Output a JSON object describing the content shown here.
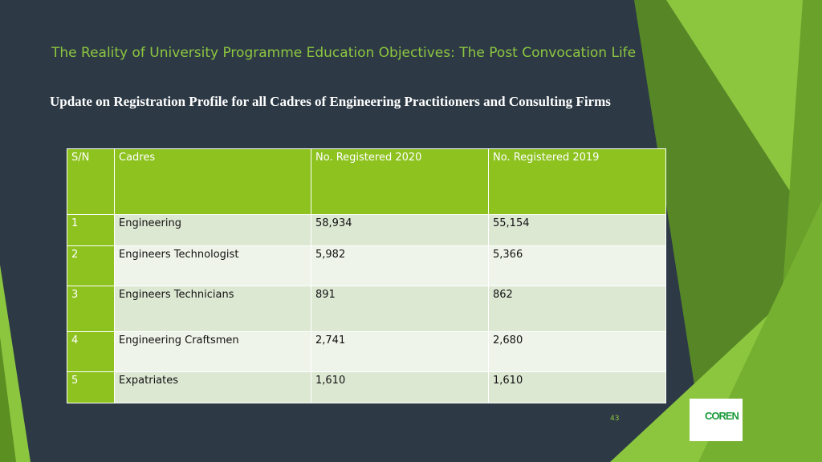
{
  "header": {
    "title": "The Reality of University Programme Education Objectives: The Post Convocation Life",
    "subtitle": "Update on Registration Profile for all Cadres of Engineering Practitioners and Consulting Firms"
  },
  "table": {
    "columns": [
      "S/N",
      "Cadres",
      "No. Registered 2020",
      "No. Registered 2019"
    ],
    "rows": [
      [
        "1",
        "Engineering",
        "58,934",
        "55,154"
      ],
      [
        "2",
        "Engineers Technologist",
        "5,982",
        "5,366"
      ],
      [
        "3",
        "Engineers Technicians",
        "891",
        "862"
      ],
      [
        "4",
        "Engineering Craftsmen",
        "2,741",
        "2,680"
      ],
      [
        "5",
        "Expatriates",
        "1,610",
        "1,610"
      ]
    ]
  },
  "footer": {
    "page_number": "43",
    "logo_text": "COREN"
  }
}
